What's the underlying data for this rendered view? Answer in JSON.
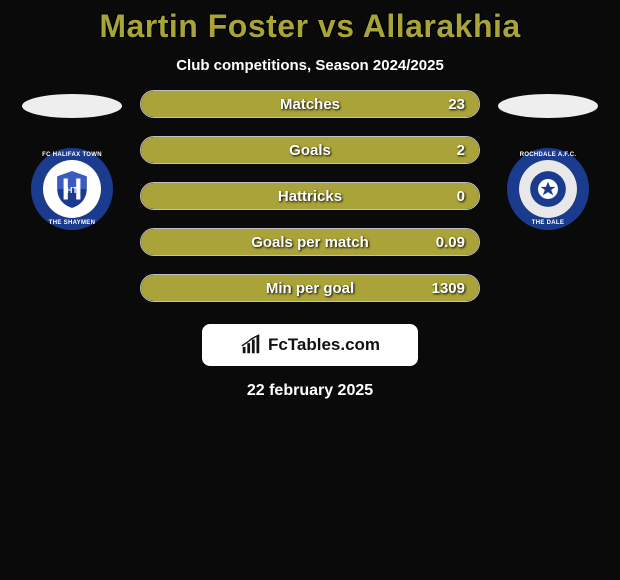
{
  "title": "Martin Foster vs Allarakhia",
  "subtitle": "Club competitions, Season 2024/2025",
  "date": "22 february 2025",
  "badge_text": "FcTables.com",
  "colors": {
    "title_color": "#a9a437",
    "bar_fill": "#a9a339",
    "background": "#0a0a0a",
    "bar_border": "#bfbfbf",
    "badge_bg": "#ffffff"
  },
  "left_club": {
    "name": "FC Halifax Town",
    "ring_color": "#1a3b8e",
    "inner_bg": "#ffffff",
    "top_text": "FC HALIFAX TOWN",
    "bottom_text": "THE SHAYMEN"
  },
  "right_club": {
    "name": "Rochdale A.F.C.",
    "ring_color": "#1a3b8e",
    "inner_bg": "#e8e8e8",
    "top_text": "ROCHDALE A.F.C.",
    "bottom_text": "THE DALE"
  },
  "stats": [
    {
      "label": "Matches",
      "value": "23",
      "fill_pct": 100
    },
    {
      "label": "Goals",
      "value": "2",
      "fill_pct": 100
    },
    {
      "label": "Hattricks",
      "value": "0",
      "fill_pct": 100
    },
    {
      "label": "Goals per match",
      "value": "0.09",
      "fill_pct": 100
    },
    {
      "label": "Min per goal",
      "value": "1309",
      "fill_pct": 100
    }
  ]
}
